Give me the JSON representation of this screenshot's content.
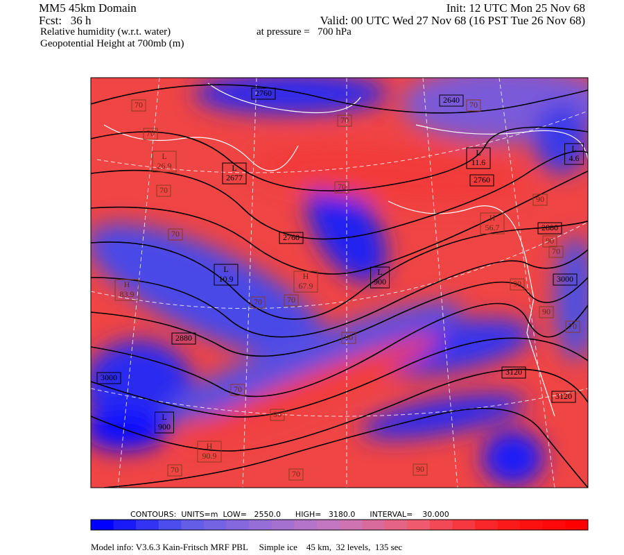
{
  "header": {
    "title": "MM5 45km Domain",
    "init": "Init: 12 UTC Mon 25 Nov 68",
    "forecast": "Fcst:   36 h",
    "valid": "Valid: 00 UTC Wed 27 Nov 68 (16 PST Tue 26 Nov 68)",
    "field": "Relative humidity (w.r.t. water)",
    "pressure": "at pressure =   700 hPa",
    "overlay": "Geopotential Height at 700mb (m)"
  },
  "map": {
    "labels": [
      "2760",
      "2640",
      "70",
      "70",
      "70",
      "70",
      {
        "mark": "L",
        "value": "26.9"
      },
      {
        "mark": "L",
        "value": "2677"
      },
      "70",
      "70",
      "2760",
      {
        "mark": "L",
        "value": "11.6"
      },
      {
        "mark": "L",
        "value": "4.6"
      },
      "90",
      {
        "mark": "H",
        "value": "56.7"
      },
      "2880",
      "70",
      "2760",
      "90",
      "70",
      {
        "mark": "L",
        "value": "10.9"
      },
      {
        "mark": "L",
        "value": "900"
      },
      {
        "mark": "H",
        "value": "67.9"
      },
      {
        "mark": "H",
        "value": "83.9"
      },
      "3000",
      "70",
      "70",
      "90",
      "90",
      "70",
      "2880",
      "90",
      "3000",
      "3120",
      "70",
      "3120",
      "90",
      {
        "mark": "L",
        "value": "900"
      },
      {
        "mark": "H",
        "value": "90.9"
      },
      "70",
      "70",
      "90"
    ]
  },
  "footer": {
    "contours": "CONTOURS:  UNITS=m  LOW=   2550.0      HIGH=   3180.0      INTERVAL=    30.000",
    "model_info": "Model info: V3.6.3 Kain-Fritsch MRF PBL     Simple ice    45 km,  32 levels,  135 sec"
  }
}
